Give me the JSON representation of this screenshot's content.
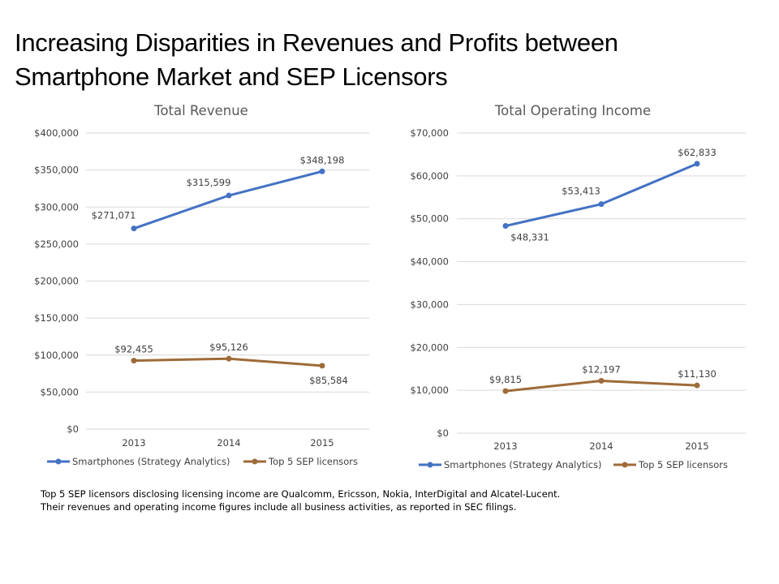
{
  "slide": {
    "title_line1": "Increasing Disparities in Revenues and Profits between",
    "title_line2": "Smartphone Market and SEP Licensors",
    "footnote_line1": "Top 5 SEP licensors disclosing licensing income are Qualcomm,  Ericsson, Nokia, InterDigital  and Alcatel-Lucent.",
    "footnote_line2": "Their revenues and operating income figures include all business activities, as reported in SEC filings."
  },
  "colors": {
    "smartphones": "#4472C4",
    "sep": "#9E6B38",
    "grid": "#D9D9D9"
  },
  "chart_data": [
    {
      "type": "line",
      "title": "Total Revenue",
      "categories": [
        "2013",
        "2014",
        "2015"
      ],
      "ylim": [
        0,
        400000
      ],
      "yticks": [
        0,
        50000,
        100000,
        150000,
        200000,
        250000,
        300000,
        350000,
        400000
      ],
      "ytick_labels": [
        "$0",
        "$50,000",
        "$100,000",
        "$150,000",
        "$200,000",
        "$250,000",
        "$300,000",
        "$350,000",
        "$400,000"
      ],
      "grid": true,
      "legend_position": "bottom",
      "series": [
        {
          "name": "Smartphones (Strategy Analytics)",
          "values": [
            271071,
            315599,
            348198
          ],
          "labels": [
            "$271,071",
            "$315,599",
            "$348,198"
          ],
          "label_position": [
            "above-left",
            "above-left",
            "above"
          ]
        },
        {
          "name": "Top 5 SEP licensors",
          "values": [
            92455,
            95126,
            85584
          ],
          "labels": [
            "$92,455",
            "$95,126",
            "$85,584"
          ],
          "label_position": [
            "above",
            "above",
            "below"
          ]
        }
      ]
    },
    {
      "type": "line",
      "title": "Total Operating Income",
      "categories": [
        "2013",
        "2014",
        "2015"
      ],
      "ylim": [
        0,
        70000
      ],
      "yticks": [
        0,
        10000,
        20000,
        30000,
        40000,
        50000,
        60000,
        70000
      ],
      "ytick_labels": [
        "$0",
        "$10,000",
        "$20,000",
        "$30,000",
        "$40,000",
        "$50,000",
        "$60,000",
        "$70,000"
      ],
      "grid": true,
      "legend_position": "bottom",
      "series": [
        {
          "name": "Smartphones (Strategy Analytics)",
          "values": [
            48331,
            53413,
            62833
          ],
          "labels": [
            "$48,331",
            "$53,413",
            "$62,833"
          ],
          "label_position": [
            "below-right",
            "above-left",
            "above"
          ]
        },
        {
          "name": "Top 5 SEP licensors",
          "values": [
            9815,
            12197,
            11130
          ],
          "labels": [
            "$9,815",
            "$12,197",
            "$11,130"
          ],
          "label_position": [
            "above",
            "above",
            "above"
          ]
        }
      ]
    }
  ]
}
